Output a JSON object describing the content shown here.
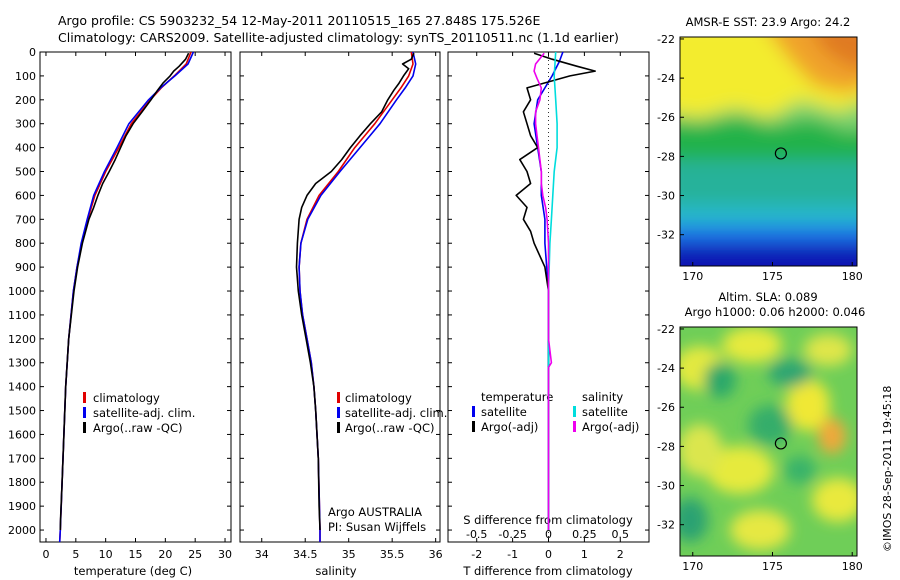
{
  "header": {
    "line1": "Argo profile: CS 5903232_54 12-May-2011 20110515_165 27.848S 175.526E",
    "line2": "Climatology: CARS2009. Satellite-adjusted climatology: synTS_20110511.nc (1.1d earlier)"
  },
  "colors": {
    "climatology": "#e00000",
    "satellite": "#0000ee",
    "argo": "#000000",
    "satellite_salinity": "#00dddd",
    "argo_adj_salinity": "#ee00ee"
  },
  "chart_data": [
    {
      "type": "line",
      "panel": "temperature",
      "xlabel": "temperature (deg C)",
      "xlim": [
        -1,
        31
      ],
      "xticks": [
        "0",
        "5",
        "10",
        "15",
        "20",
        "25",
        "30"
      ],
      "ylim": [
        2050,
        0
      ],
      "yticks": [
        "0",
        "100",
        "200",
        "300",
        "400",
        "500",
        "600",
        "700",
        "800",
        "900",
        "1000",
        "1100",
        "1200",
        "1300",
        "1400",
        "1500",
        "1600",
        "1700",
        "1800",
        "1900",
        "2000"
      ],
      "legend": [
        "climatology",
        "satellite-adj. clim.",
        "Argo(..raw -QC)"
      ],
      "series": [
        {
          "name": "climatology",
          "depth": [
            0,
            50,
            100,
            150,
            200,
            300,
            400,
            500,
            600,
            700,
            800,
            900,
            1000,
            1200,
            1400,
            1600,
            1800,
            2000,
            2050
          ],
          "values": [
            24.3,
            23.5,
            21.5,
            19.3,
            17.5,
            14.3,
            12.2,
            10.0,
            8.2,
            7.0,
            6.0,
            5.2,
            4.6,
            3.8,
            3.3,
            3.0,
            2.7,
            2.4,
            2.3
          ]
        },
        {
          "name": "satellite-adj. clim.",
          "depth": [
            0,
            50,
            100,
            150,
            200,
            300,
            400,
            500,
            600,
            700,
            800,
            900,
            1000,
            1200,
            1400,
            1600,
            1800,
            2000,
            2050
          ],
          "values": [
            24.7,
            23.8,
            21.6,
            19.2,
            17.2,
            13.9,
            11.9,
            9.8,
            8.0,
            6.9,
            5.9,
            5.2,
            4.6,
            3.8,
            3.3,
            3.0,
            2.7,
            2.4,
            2.3
          ]
        },
        {
          "name": "Argo(..raw -QC)",
          "depth": [
            5,
            30,
            60,
            80,
            100,
            130,
            160,
            200,
            250,
            300,
            350,
            400,
            450,
            500,
            550,
            600,
            650,
            700,
            800,
            900,
            1000,
            1200,
            1400,
            1600,
            1800,
            1950,
            2000
          ],
          "values": [
            23.9,
            23.4,
            22.3,
            21.4,
            20.8,
            19.6,
            18.7,
            17.6,
            16.1,
            14.6,
            13.4,
            12.5,
            11.6,
            10.6,
            9.5,
            8.7,
            8.0,
            7.2,
            6.1,
            5.3,
            4.7,
            3.8,
            3.3,
            3.0,
            2.7,
            2.45,
            2.4
          ]
        }
      ]
    },
    {
      "type": "line",
      "panel": "salinity",
      "xlabel": "salinity",
      "xlim": [
        33.75,
        36.05
      ],
      "xticks": [
        "34",
        "34.5",
        "35",
        "35.5",
        "36"
      ],
      "ylim": [
        2050,
        0
      ],
      "legend": [
        "climatology",
        "satellite-adj. clim.",
        "Argo(..raw -QC)"
      ],
      "annotation": [
        "Argo AUSTRALIA",
        "PI: Susan Wijffels"
      ],
      "series": [
        {
          "name": "climatology",
          "depth": [
            0,
            50,
            100,
            150,
            200,
            300,
            400,
            500,
            600,
            700,
            800,
            900,
            1000,
            1100,
            1200,
            1300,
            1400,
            1500,
            1700,
            2000,
            2050
          ],
          "values": [
            35.72,
            35.74,
            35.69,
            35.6,
            35.5,
            35.3,
            35.07,
            34.88,
            34.66,
            34.52,
            34.45,
            34.43,
            34.44,
            34.47,
            34.52,
            34.57,
            34.6,
            34.62,
            34.65,
            34.67,
            34.67
          ]
        },
        {
          "name": "satellite-adj. clim.",
          "depth": [
            0,
            50,
            100,
            150,
            200,
            300,
            400,
            500,
            600,
            700,
            800,
            900,
            1000,
            1100,
            1200,
            1300,
            1400,
            1500,
            1700,
            2000,
            2050
          ],
          "values": [
            35.74,
            35.77,
            35.74,
            35.65,
            35.55,
            35.36,
            35.13,
            34.9,
            34.68,
            34.53,
            34.45,
            34.43,
            34.44,
            34.47,
            34.52,
            34.57,
            34.6,
            34.62,
            34.65,
            34.67,
            34.67
          ]
        },
        {
          "name": "Argo(..raw -QC)",
          "depth": [
            5,
            30,
            50,
            70,
            100,
            130,
            160,
            200,
            250,
            300,
            350,
            400,
            450,
            500,
            550,
            600,
            650,
            700,
            800,
            900,
            1000,
            1100,
            1200,
            1300,
            1400,
            1500,
            1700,
            1900,
            2000
          ],
          "values": [
            35.75,
            35.72,
            35.62,
            35.69,
            35.63,
            35.58,
            35.52,
            35.45,
            35.38,
            35.25,
            35.13,
            35.02,
            34.92,
            34.8,
            34.62,
            34.52,
            34.46,
            34.43,
            34.41,
            34.4,
            34.42,
            34.46,
            34.51,
            34.56,
            34.6,
            34.62,
            34.65,
            34.66,
            34.67
          ]
        }
      ]
    },
    {
      "type": "line",
      "panel": "difference from climatology",
      "xlabel": "T difference from climatology",
      "xlabel_top": "S difference from climatology",
      "xlim": [
        -2.8,
        2.8
      ],
      "xticks": [
        "-2",
        "-1",
        "0",
        "1",
        "2"
      ],
      "xticks_salinity": [
        "-0.5",
        "-0.25",
        "0",
        "0.25",
        "0.5"
      ],
      "ylim": [
        2050,
        0
      ],
      "legend_titles": [
        "temperature",
        "salinity"
      ],
      "legend": [
        "satellite",
        "Argo(-adj)",
        "satellite",
        "Argo(-adj)"
      ],
      "series": [
        {
          "name": "satellite",
          "variable": "temperature",
          "depth": [
            0,
            40,
            100,
            150,
            200,
            300,
            400,
            500,
            600,
            700,
            800,
            1000,
            1200,
            1500,
            2000
          ],
          "values": [
            0.4,
            0.3,
            0.1,
            -0.1,
            -0.3,
            -0.4,
            -0.3,
            -0.2,
            -0.2,
            -0.1,
            -0.1,
            0.0,
            0.0,
            0.0,
            0.0
          ]
        },
        {
          "name": "Argo(-adj)",
          "variable": "temperature",
          "depth": [
            5,
            30,
            60,
            80,
            100,
            150,
            200,
            250,
            300,
            350,
            400,
            450,
            500,
            550,
            600,
            650,
            700,
            750,
            800,
            900,
            1000,
            1200,
            1500,
            2000
          ],
          "values": [
            -0.4,
            0.1,
            0.8,
            1.3,
            0.6,
            -0.6,
            -0.5,
            -0.7,
            -0.6,
            -0.5,
            -0.3,
            -0.8,
            -0.6,
            -0.5,
            -0.9,
            -0.6,
            -0.7,
            -0.5,
            -0.4,
            -0.1,
            0.0,
            0.0,
            0.0,
            0.0
          ]
        },
        {
          "name": "satellite",
          "variable": "salinity",
          "depth": [
            0,
            100,
            200,
            300,
            400,
            500,
            600,
            700,
            800,
            1000,
            1300,
            1600,
            2000
          ],
          "values": [
            0.05,
            0.04,
            0.05,
            0.06,
            0.06,
            0.04,
            0.03,
            0.02,
            0.01,
            0.0,
            0.0,
            0.0,
            0.0
          ]
        },
        {
          "name": "Argo(-adj)",
          "variable": "salinity",
          "depth": [
            5,
            50,
            80,
            110,
            150,
            200,
            250,
            300,
            350,
            400,
            450,
            500,
            550,
            600,
            650,
            700,
            800,
            900,
            1000,
            1200,
            1300,
            1320,
            1350,
            1600,
            2000
          ],
          "values": [
            -0.03,
            -0.09,
            -0.1,
            -0.08,
            -0.05,
            -0.06,
            -0.09,
            -0.09,
            -0.08,
            -0.07,
            -0.06,
            -0.05,
            -0.05,
            -0.04,
            -0.02,
            -0.01,
            0.0,
            0.0,
            0.0,
            0.0,
            0.02,
            0.0,
            0.0,
            0.0,
            0.0
          ]
        }
      ]
    },
    {
      "type": "heatmap",
      "panel": "AMSR-E SST map",
      "title": "AMSR-E SST: 23.9 Argo: 24.2",
      "xticks": [
        "170",
        "175",
        "180"
      ],
      "yticks": [
        "-22",
        "-24",
        "-26",
        "-28",
        "-30",
        "-32"
      ],
      "xlim": [
        169.2,
        180.3
      ],
      "ylim": [
        -33.6,
        -21.9
      ],
      "marker": {
        "lon": 175.526,
        "lat": -27.848
      }
    },
    {
      "type": "heatmap",
      "panel": "Altimetry SLA map",
      "title": [
        "Altim. SLA: 0.089",
        "Argo h1000: 0.06 h2000: 0.046"
      ],
      "xticks": [
        "170",
        "175",
        "180"
      ],
      "yticks": [
        "-22",
        "-24",
        "-26",
        "-28",
        "-30",
        "-32"
      ],
      "xlim": [
        169.2,
        180.3
      ],
      "ylim": [
        -33.6,
        -21.9
      ],
      "marker": {
        "lon": 175.526,
        "lat": -27.848
      }
    }
  ],
  "footer": {
    "credit": "©IMOS 28-Sep-2011 19:45:18"
  }
}
